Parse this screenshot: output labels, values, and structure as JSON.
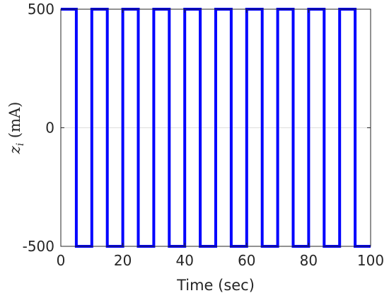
{
  "chart_data": {
    "type": "line",
    "title": "",
    "xlabel": "Time (sec)",
    "ylabel_var": "z",
    "ylabel_sub": "i",
    "ylabel_unit": " (mA)",
    "xlim": [
      0,
      100
    ],
    "ylim": [
      -500,
      500
    ],
    "x_ticks": [
      0,
      20,
      40,
      60,
      80,
      100
    ],
    "y_ticks": [
      -500,
      0,
      500
    ],
    "x_tick_labels": [
      "0",
      "20",
      "40",
      "60",
      "80",
      "100"
    ],
    "y_tick_labels": [
      "-500",
      "0",
      "500"
    ],
    "grid": "y-zero-line",
    "series": [
      {
        "color": "#0000ff",
        "x": [
          0,
          5,
          5,
          10,
          10,
          15,
          15,
          20,
          20,
          25,
          25,
          30,
          30,
          35,
          35,
          40,
          40,
          45,
          45,
          50,
          50,
          55,
          55,
          60,
          60,
          65,
          65,
          70,
          70,
          75,
          75,
          80,
          80,
          85,
          85,
          90,
          90,
          95,
          95,
          100
        ],
        "y": [
          500,
          500,
          -500,
          -500,
          500,
          500,
          -500,
          -500,
          500,
          500,
          -500,
          -500,
          500,
          500,
          -500,
          -500,
          500,
          500,
          -500,
          -500,
          500,
          500,
          -500,
          -500,
          500,
          500,
          -500,
          -500,
          500,
          500,
          -500,
          -500,
          500,
          500,
          -500,
          -500,
          500,
          500,
          -500,
          -500
        ]
      }
    ]
  }
}
